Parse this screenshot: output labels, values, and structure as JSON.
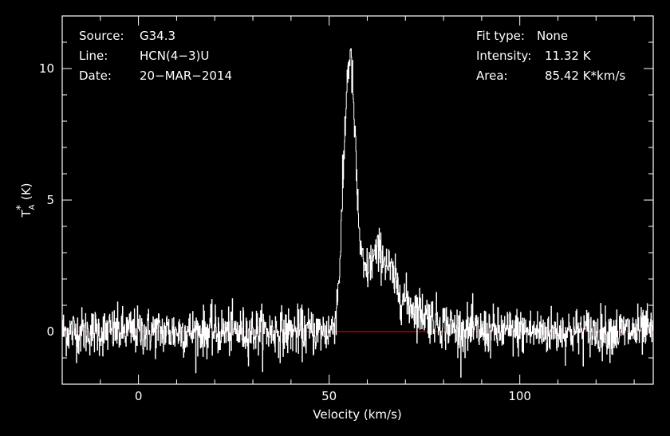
{
  "chart_data": {
    "type": "line",
    "title": "",
    "xlabel": "Velocity (km/s)",
    "ylabel_main": "T",
    "ylabel_sub": "A",
    "ylabel_sup": "*",
    "ylabel_unit": "(K)",
    "xlim": [
      -20,
      135
    ],
    "ylim": [
      -2,
      12
    ],
    "x_ticks": [
      0,
      50,
      100
    ],
    "y_ticks": [
      0,
      5,
      10
    ],
    "grid": false,
    "baseline": 0,
    "colors": {
      "spectrum": "#ffffff",
      "baseline": "#d40000",
      "axes": "#ffffff",
      "background": "#000000"
    },
    "profile": {
      "noise_rms": 0.45,
      "channel_width_kms": 0.1,
      "components": [
        {
          "center": 55.3,
          "amplitude": 10.0,
          "sigma": 1.55
        },
        {
          "center": 62.5,
          "amplitude": 2.5,
          "sigma": 3.6
        },
        {
          "center": 70.0,
          "amplitude": 0.9,
          "sigma": 6.5
        }
      ]
    },
    "samples": {
      "x": [
        -20,
        0,
        20,
        40,
        45,
        48,
        50,
        52,
        53,
        54,
        55,
        55.5,
        56,
        57,
        58,
        59,
        60,
        62,
        64,
        66,
        68,
        70,
        75,
        80,
        90,
        100,
        120,
        135
      ],
      "y": [
        0,
        0,
        0,
        0.1,
        0.4,
        0.8,
        1.2,
        3.0,
        5.5,
        8.5,
        10.8,
        11.32,
        10.6,
        7.5,
        4.5,
        2.6,
        2.1,
        2.6,
        2.7,
        2.1,
        1.6,
        1.1,
        0.5,
        0.25,
        0.1,
        0.05,
        0,
        0
      ]
    }
  },
  "info": {
    "source_label": "Source:",
    "source_value": "G34.3",
    "line_label": "Line:",
    "line_value": "HCN(4−3)U",
    "date_label": "Date:",
    "date_value": "20−MAR−2014",
    "fit_label": "Fit type:",
    "fit_value": "None",
    "intensity_label": "Intensity:",
    "intensity_value": "11.32 K",
    "area_label": "Area:",
    "area_value": "85.42 K*km/s"
  }
}
